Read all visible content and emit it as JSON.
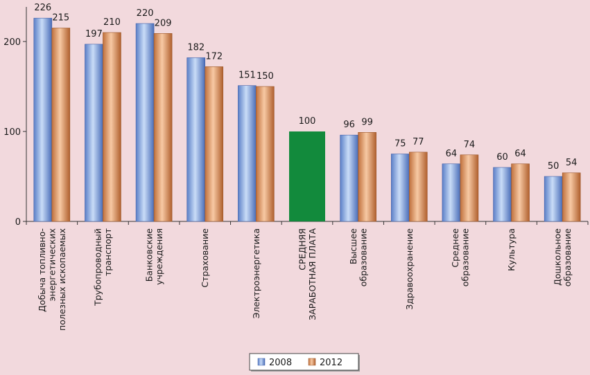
{
  "chart_data": {
    "type": "bar",
    "title": "",
    "xlabel": "",
    "ylabel": "",
    "ylim": [
      0,
      240
    ],
    "yticks": [
      0,
      100,
      200
    ],
    "grid": false,
    "legend_position": "bottom",
    "categories": [
      [
        "Добыча топливно-",
        "энергетических",
        "полезных ископаемых"
      ],
      [
        "Трубопроводный",
        "транспорт"
      ],
      [
        "Банковские",
        "учреждения"
      ],
      [
        "Страхование"
      ],
      [
        "Электроэнергетика"
      ],
      [
        "СРЕДНЯЯ",
        "ЗАРАБОТНАЯ ПЛАТА"
      ],
      [
        "Высшее",
        "образование"
      ],
      [
        "Здравоохранение"
      ],
      [
        "Среднее",
        "образование"
      ],
      [
        "Культура"
      ],
      [
        "Дошкольное",
        "образование"
      ]
    ],
    "series": [
      {
        "name": "2008",
        "color": "#8aaee6",
        "values": [
          226,
          197,
          220,
          182,
          151,
          null,
          96,
          75,
          64,
          60,
          50
        ]
      },
      {
        "name": "2012",
        "color": "#e0a070",
        "values": [
          215,
          210,
          209,
          172,
          150,
          null,
          99,
          77,
          74,
          64,
          54
        ]
      }
    ],
    "average": {
      "index": 5,
      "value": 100,
      "color": "#128a3c"
    }
  }
}
